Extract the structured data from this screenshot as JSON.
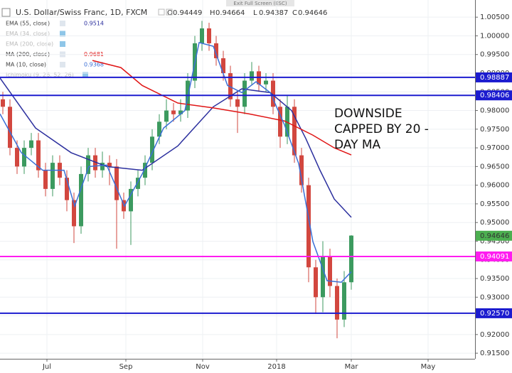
{
  "chart_data": {
    "type": "candlestick",
    "title": "U.S. Dollar/Swiss Franc, 1D, FXCM",
    "ohlc_labels": [
      "O",
      "H",
      "L",
      "C"
    ],
    "ohlc": [
      0.94449,
      0.94664,
      0.94387,
      0.94646
    ],
    "exit_label": "Exit Full Screen (ESC)",
    "annotation": [
      "DOWNSIDE",
      "CAPPED BY 20 -",
      "DAY MA"
    ],
    "up_color": "#3c9a5f",
    "down_color": "#d2473f",
    "x": [
      0,
      1,
      2,
      3,
      4,
      5,
      6,
      7,
      8,
      9,
      10,
      11,
      12,
      13,
      14,
      15,
      16,
      17,
      18,
      19,
      20,
      21,
      22,
      23,
      24,
      25,
      26,
      27,
      28,
      29,
      30,
      31,
      32,
      33,
      34,
      35,
      36,
      37,
      38,
      39,
      40,
      41,
      42,
      43,
      44,
      45,
      46,
      47,
      48,
      49
    ],
    "open": [
      0.983,
      0.981,
      0.97,
      0.965,
      0.97,
      0.972,
      0.964,
      0.959,
      0.966,
      0.962,
      0.956,
      0.949,
      0.963,
      0.968,
      0.964,
      0.966,
      0.965,
      0.956,
      0.953,
      0.959,
      0.962,
      0.966,
      0.973,
      0.977,
      0.98,
      0.979,
      0.98,
      0.988,
      0.998,
      1.002,
      0.998,
      0.994,
      0.99,
      0.983,
      0.981,
      0.988,
      0.9905,
      0.987,
      0.988,
      0.981,
      0.973,
      0.981,
      0.968,
      0.96,
      0.938,
      0.93,
      0.941,
      0.933,
      0.924,
      0.934
    ],
    "high": [
      0.985,
      0.983,
      0.972,
      0.972,
      0.974,
      0.974,
      0.966,
      0.968,
      0.968,
      0.964,
      0.958,
      0.965,
      0.97,
      0.97,
      0.969,
      0.968,
      0.967,
      0.958,
      0.961,
      0.964,
      0.968,
      0.975,
      0.979,
      0.983,
      0.982,
      0.983,
      0.99,
      1.0,
      1.004,
      1.0035,
      1.0,
      0.996,
      0.992,
      0.985,
      0.99,
      0.993,
      0.992,
      0.99,
      0.99,
      0.983,
      0.984,
      0.983,
      0.97,
      0.962,
      0.94,
      0.945,
      0.943,
      0.935,
      0.937,
      0.9466
    ],
    "low": [
      0.979,
      0.968,
      0.963,
      0.963,
      0.968,
      0.962,
      0.957,
      0.957,
      0.96,
      0.953,
      0.9445,
      0.947,
      0.961,
      0.962,
      0.962,
      0.96,
      0.943,
      0.951,
      0.944,
      0.957,
      0.96,
      0.964,
      0.971,
      0.975,
      0.977,
      0.977,
      0.978,
      0.986,
      0.996,
      0.996,
      0.992,
      0.988,
      0.981,
      0.974,
      0.979,
      0.987,
      0.985,
      0.985,
      0.979,
      0.97,
      0.971,
      0.966,
      0.958,
      0.934,
      0.9255,
      0.926,
      0.93,
      0.919,
      0.922,
      0.932
    ],
    "close": [
      0.981,
      0.97,
      0.965,
      0.97,
      0.972,
      0.964,
      0.959,
      0.966,
      0.962,
      0.956,
      0.949,
      0.963,
      0.968,
      0.964,
      0.966,
      0.965,
      0.956,
      0.953,
      0.959,
      0.962,
      0.966,
      0.973,
      0.977,
      0.98,
      0.979,
      0.98,
      0.988,
      0.998,
      1.002,
      0.998,
      0.994,
      0.99,
      0.983,
      0.981,
      0.988,
      0.9905,
      0.987,
      0.988,
      0.981,
      0.973,
      0.981,
      0.968,
      0.96,
      0.938,
      0.93,
      0.941,
      0.933,
      0.924,
      0.934,
      0.9465
    ],
    "series": [
      {
        "name": "EMA (55, close)",
        "color": "#2b2f9e",
        "x": [
          -0.4,
          4.6,
          9.6,
          14.6,
          19.6,
          24.6,
          29.6,
          33.6,
          37.6,
          40.6,
          42.6,
          44.6,
          46.6,
          49
        ],
        "values": [
          0.9887,
          0.9753,
          0.9687,
          0.965,
          0.964,
          0.9705,
          0.981,
          0.9858,
          0.9848,
          0.98,
          0.9725,
          0.964,
          0.9563,
          0.9514
        ]
      },
      {
        "name": "MA (200, close)",
        "color": "#e01515",
        "x": [
          12.6,
          16.6,
          19.6,
          24.6,
          29.6,
          34.6,
          39.6,
          43.6,
          46.6,
          49
        ],
        "values": [
          0.9934,
          0.9915,
          0.9867,
          0.982,
          0.9807,
          0.9791,
          0.9772,
          0.9734,
          0.97,
          0.9681
        ]
      },
      {
        "name": "MA (10, close)",
        "color": "#3b6fd6",
        "x": [
          -0.4,
          2.6,
          5.6,
          8.6,
          10.1,
          12.1,
          14.6,
          17.1,
          19.6,
          22.6,
          25.6,
          27.6,
          29.6,
          31.6,
          33.6,
          35.6,
          37.6,
          39.6,
          41.6,
          43.6,
          45.6,
          47.6,
          49
        ],
        "values": [
          0.9791,
          0.9687,
          0.964,
          0.964,
          0.9544,
          0.965,
          0.9654,
          0.9544,
          0.963,
          0.9753,
          0.98,
          0.9982,
          0.9972,
          0.9867,
          0.9848,
          0.9877,
          0.9848,
          0.9762,
          0.9658,
          0.9449,
          0.9344,
          0.934,
          0.9368
        ]
      }
    ],
    "hidden_indicators": [
      "EMA (34, close)",
      "EMA (200, close)",
      "Ichimoku (9, 26, 52, 26)"
    ],
    "levels": [
      {
        "value": 0.98887,
        "color": "#1c1ccf"
      },
      {
        "value": 0.98406,
        "color": "#1c1ccf"
      },
      {
        "value": 0.94091,
        "color": "#ff1cf0"
      },
      {
        "value": {
          "value": 0.9257,
          "label": "0.92570"
        },
        "color": "#1c1ccf"
      }
    ],
    "last_price": 0.94646,
    "last_price_color": "#4caf50",
    "xlim": [
      -0.4,
      66.4
    ],
    "xticks": [
      {
        "value": 6.2,
        "label": "Jul"
      },
      {
        "value": 17.3,
        "label": "Sep"
      },
      {
        "value": 28.1,
        "label": "Nov"
      },
      {
        "value": 38.5,
        "label": "2018"
      },
      {
        "value": 49,
        "label": "Mar"
      },
      {
        "value": 59.8,
        "label": "May"
      }
    ],
    "ylim": [
      0.9135,
      1.0096
    ],
    "yticks": [
      {
        "value": 0.915,
        "label": "0.91500"
      },
      {
        "value": 0.92,
        "label": "0.92000"
      },
      {
        "value": 0.925,
        "label": "0.92500"
      },
      {
        "value": 0.93,
        "label": "0.93000"
      },
      {
        "value": 0.935,
        "label": "0.93500"
      },
      {
        "value": 0.94,
        "label": "0.94000"
      },
      {
        "value": 0.945,
        "label": "0.94500"
      },
      {
        "value": 0.95,
        "label": "0.95000"
      },
      {
        "value": 0.955,
        "label": "0.95500"
      },
      {
        "value": 0.96,
        "label": "0.96000"
      },
      {
        "value": 0.965,
        "label": "0.96500"
      },
      {
        "value": 0.97,
        "label": "0.97000"
      },
      {
        "value": 0.975,
        "label": "0.97500"
      },
      {
        "value": 0.98,
        "label": "0.98000"
      },
      {
        "value": 0.985,
        "label": "0.98500"
      },
      {
        "value": 0.99,
        "label": "0.99000"
      },
      {
        "value": 0.995,
        "label": "0.99500"
      },
      {
        "value": 1.0,
        "label": "1.00000"
      },
      {
        "value": 1.005,
        "label": "1.00500"
      }
    ],
    "grid": true
  }
}
